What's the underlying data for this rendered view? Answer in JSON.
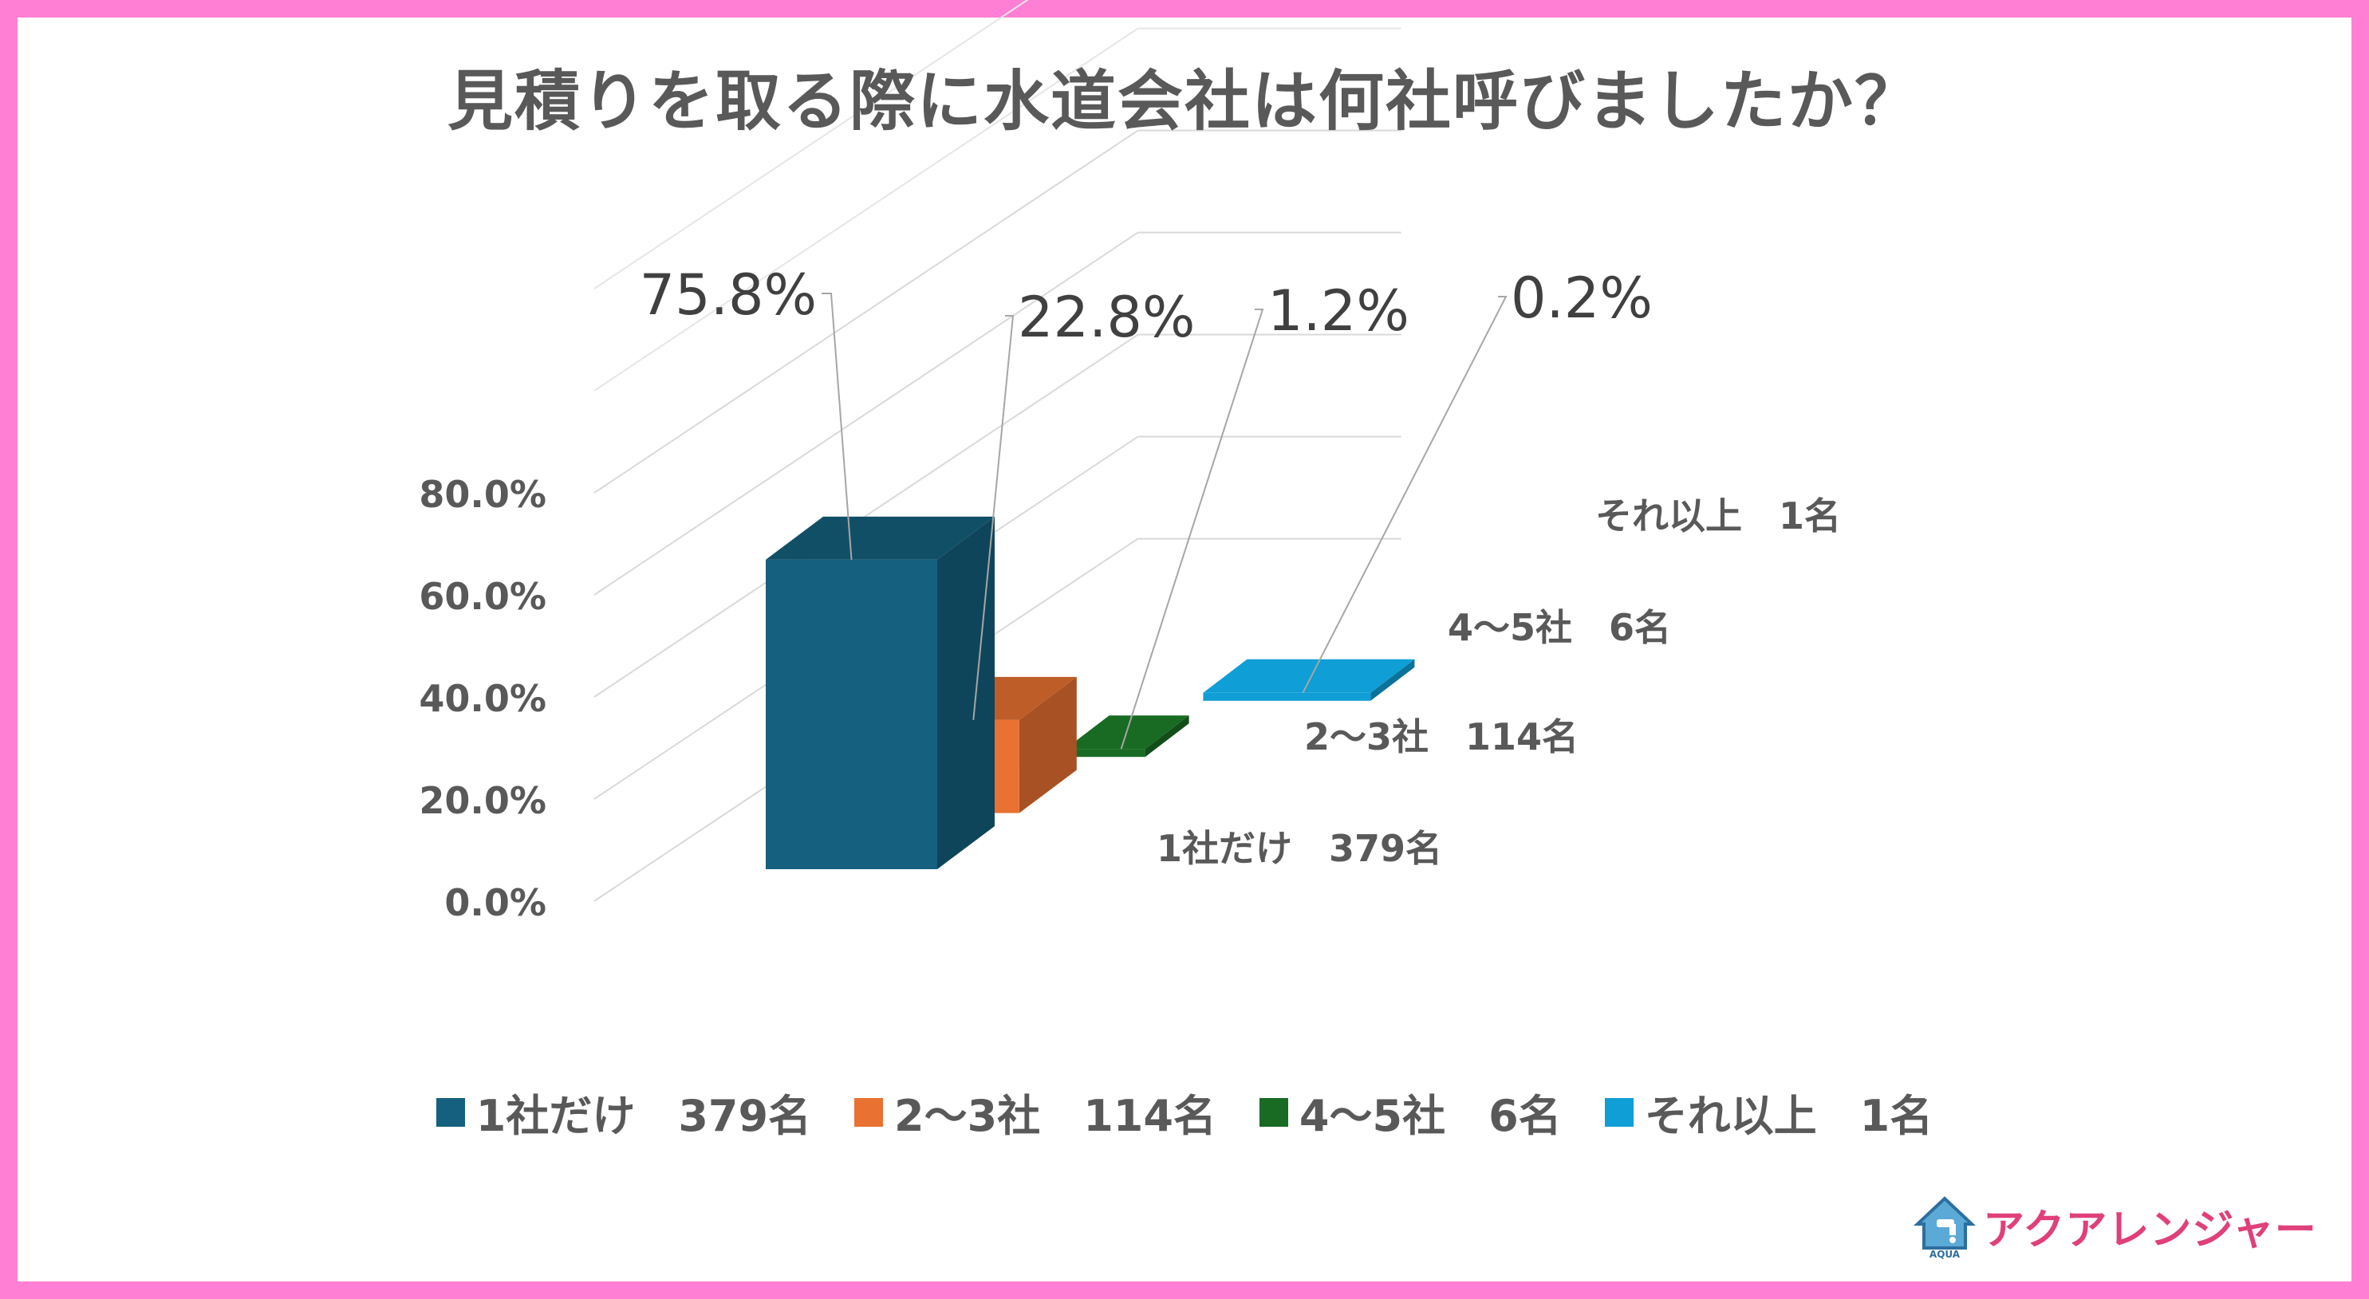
{
  "chart_data": {
    "type": "bar",
    "title": "見積りを取る際に水道会社は何社呼びましたか？",
    "categories": [
      "1社だけ　3 79名",
      "2〜3社　114名",
      "4〜5社　6名",
      "それ以上　1名"
    ],
    "series": [
      {
        "name": "1社だけ　379名",
        "value": 75.8,
        "label": "75.8%",
        "color": "#15607e"
      },
      {
        "name": "2〜3社　114名",
        "value": 22.8,
        "label": "22.8%",
        "color": "#e97132"
      },
      {
        "name": "4〜5社　6名",
        "value": 1.2,
        "label": "1.2%",
        "color": "#196b24"
      },
      {
        "name": "それ以上　1名",
        "value": 0.2,
        "label": "0.2%",
        "color": "#0f9ed5"
      }
    ],
    "yticks": [
      "0.0%",
      "20.0%",
      "40.0%",
      "60.0%",
      "80.0%"
    ],
    "ylim": [
      0,
      80
    ],
    "depth_labels": [
      "1社だけ　379名",
      "2〜3社　114名",
      "4〜5社　6名",
      "それ以上　1名"
    ],
    "legend_position": "bottom"
  },
  "legend": [
    {
      "label": "1社だけ　379名",
      "color": "#15607e"
    },
    {
      "label": "2〜3社　114名",
      "color": "#e97132"
    },
    {
      "label": "4〜5社　6名",
      "color": "#196b24"
    },
    {
      "label": "それ以上　1名",
      "color": "#0f9ed5"
    }
  ],
  "logo": {
    "text": "アクアレンジャー",
    "icon": "house-faucet-icon",
    "small_text": "AQUA"
  }
}
